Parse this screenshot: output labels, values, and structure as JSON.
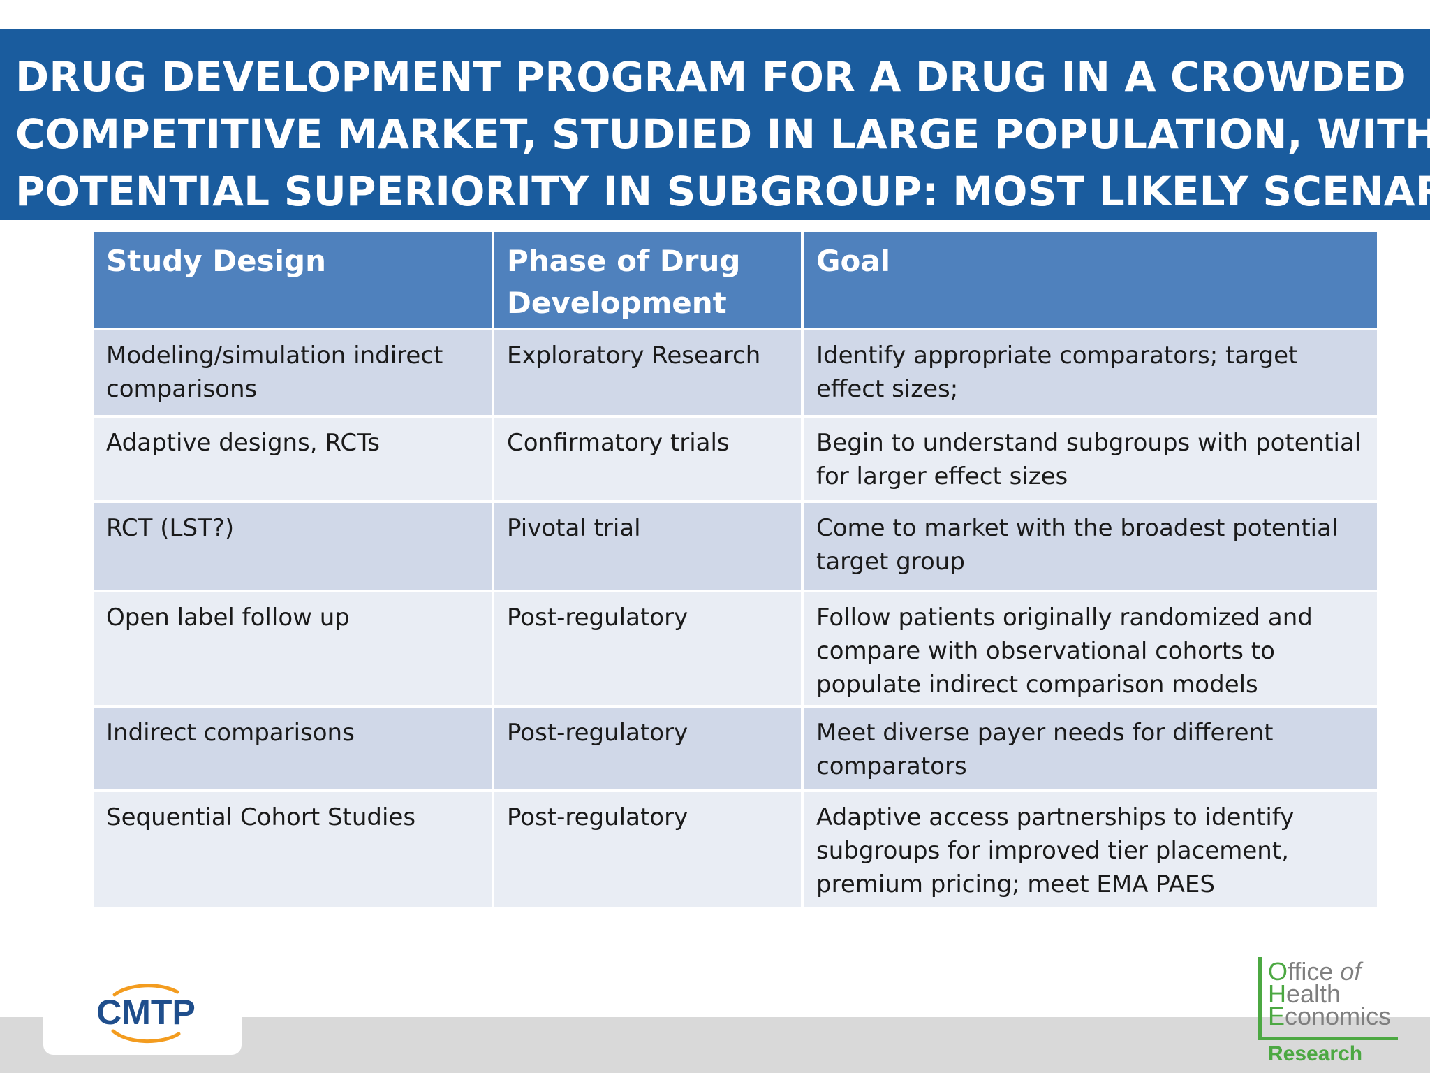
{
  "title": {
    "lines": [
      "DRUG DEVELOPMENT PROGRAM FOR A DRUG IN A CROWDED",
      "COMPETITIVE MARKET, STUDIED IN LARGE POPULATION, WITH",
      "POTENTIAL SUPERIORITY IN SUBGROUP: MOST LIKELY SCENARIO"
    ]
  },
  "table": {
    "headers": [
      "Study Design",
      "Phase of Drug Development",
      "Goal"
    ],
    "rows": [
      [
        "Modeling/simulation indirect comparisons",
        "Exploratory Research",
        "Identify appropriate comparators;  target effect sizes;"
      ],
      [
        "Adaptive designs, RCTs",
        "Confirmatory trials",
        "Begin to understand subgroups with potential for larger effect sizes"
      ],
      [
        "RCT (LST?)",
        "Pivotal trial",
        "Come to market with the broadest potential target group"
      ],
      [
        "Open label follow up",
        "Post-regulatory",
        "Follow patients originally randomized and compare with observational cohorts to populate indirect comparison models"
      ],
      [
        "Indirect comparisons",
        "Post-regulatory",
        "Meet diverse payer needs for different comparators"
      ],
      [
        "Sequential Cohort Studies",
        "Post-regulatory",
        "Adaptive access partnerships to identify subgroups for improved tier placement, premium pricing; meet EMA PAES"
      ]
    ]
  },
  "logos": {
    "cmtp": {
      "text": "CMTP"
    },
    "ohe": {
      "cap1": "O",
      "word1": "ffice ",
      "word1b": "of",
      "cap2": "H",
      "word2": "ealth",
      "cap3": "E",
      "word3": "conomics",
      "research": "Research"
    }
  },
  "colors": {
    "title_band": "#1a5c9e",
    "header": "#4f81bd",
    "row_odd": "#d0d8e8",
    "row_even": "#e9edf4",
    "cmtp_blue": "#1f4e8c",
    "cmtp_orange": "#f39c1f",
    "ohe_green": "#4ca842"
  }
}
